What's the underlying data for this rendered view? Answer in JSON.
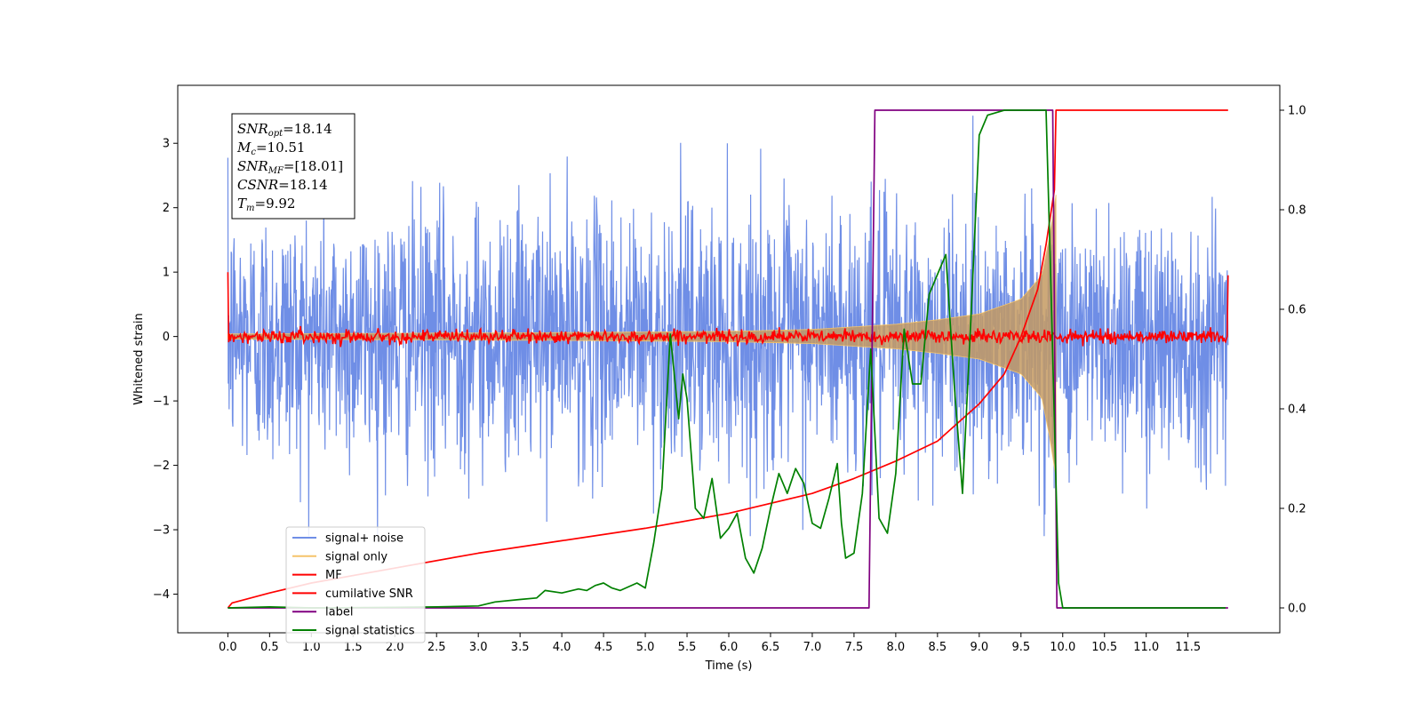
{
  "chart_data": {
    "type": "line",
    "xlabel": "Time (s)",
    "ylabel": "Whitened strain",
    "xlim": [
      -0.6,
      12.6
    ],
    "ylim": [
      -4.6,
      3.9
    ],
    "y2lim": [
      -0.05,
      1.05
    ],
    "x_ticks": [
      "0.0",
      "0.5",
      "1.0",
      "1.5",
      "2.0",
      "2.5",
      "3.0",
      "3.5",
      "4.0",
      "4.5",
      "5.0",
      "5.5",
      "6.0",
      "6.5",
      "7.0",
      "7.5",
      "8.0",
      "8.5",
      "9.0",
      "9.5",
      "10.0",
      "10.5",
      "11.0",
      "11.5"
    ],
    "y_ticks": [
      "3",
      "2",
      "1",
      "0",
      "−1",
      "−2",
      "−3",
      "−4"
    ],
    "y2_ticks": [
      "1.0",
      "0.8",
      "0.6",
      "0.4",
      "0.2",
      "0.0"
    ],
    "legend": {
      "placement": "lower-left",
      "entries": [
        "signal+ noise",
        "signal only",
        "MF",
        "cumilative SNR",
        "label",
        "signal statistics"
      ]
    },
    "annotation": {
      "lines": [
        {
          "sym": "SNR",
          "sub": "opt",
          "val": "=18.14"
        },
        {
          "sym": "M",
          "sub": "c",
          "val": "=10.51"
        },
        {
          "sym": "SNR",
          "sub": "MF",
          "val": "=[18.01]"
        },
        {
          "sym": "CSNR",
          "sub": "",
          "val": "=18.14"
        },
        {
          "sym": "T",
          "sub": "m",
          "val": "=9.92"
        }
      ]
    },
    "series": [
      {
        "name": "signal+ noise",
        "color": "#6f8ee6",
        "axis": "left",
        "kind": "noise",
        "t_start": 0.0,
        "t_end": 11.98,
        "amplitude_sd": 1.0,
        "range": [
          -3.1,
          3.5
        ]
      },
      {
        "name": "signal only",
        "color": "#f5c46a",
        "axis": "left",
        "kind": "chirp",
        "t_start": 0.0,
        "t_end": 9.92,
        "envelope": [
          [
            0.0,
            0.04
          ],
          [
            4.0,
            0.06
          ],
          [
            6.0,
            0.08
          ],
          [
            7.0,
            0.11
          ],
          [
            8.0,
            0.19
          ],
          [
            8.5,
            0.26
          ],
          [
            9.0,
            0.35
          ],
          [
            9.5,
            0.58
          ],
          [
            9.75,
            0.95
          ],
          [
            9.85,
            1.6
          ],
          [
            9.92,
            2.2
          ]
        ]
      },
      {
        "name": "MF",
        "color": "#ff0000",
        "axis": "left",
        "kind": "mf",
        "t_start": 0.0,
        "t_end": 11.98,
        "start_value": 1.0,
        "end_value": 0.95,
        "level": 0.0,
        "sd": 0.05
      },
      {
        "name": "cumilative SNR",
        "color": "#ff0000",
        "axis": "right",
        "x": [
          0.0,
          0.05,
          0.5,
          1.0,
          2.0,
          3.0,
          4.0,
          5.0,
          6.0,
          7.0,
          7.5,
          8.0,
          8.5,
          9.0,
          9.3,
          9.5,
          9.7,
          9.8,
          9.9,
          9.92,
          10.0,
          11.98
        ],
        "y": [
          0.0,
          0.01,
          0.03,
          0.05,
          0.08,
          0.11,
          0.135,
          0.16,
          0.19,
          0.23,
          0.26,
          0.295,
          0.335,
          0.41,
          0.47,
          0.545,
          0.64,
          0.73,
          0.84,
          1.0,
          1.0,
          1.0
        ]
      },
      {
        "name": "label",
        "color": "#800080",
        "axis": "right",
        "x": [
          0.0,
          7.68,
          7.75,
          9.88,
          9.93,
          11.98
        ],
        "y": [
          0.0,
          0.0,
          1.0,
          1.0,
          0.0,
          0.0
        ]
      },
      {
        "name": "signal statistics",
        "color": "#008000",
        "axis": "right",
        "x": [
          0.0,
          0.5,
          1.0,
          2.0,
          2.5,
          3.0,
          3.2,
          3.5,
          3.7,
          3.8,
          4.0,
          4.2,
          4.3,
          4.4,
          4.5,
          4.6,
          4.7,
          4.9,
          5.0,
          5.1,
          5.2,
          5.3,
          5.4,
          5.45,
          5.5,
          5.6,
          5.7,
          5.8,
          5.9,
          6.0,
          6.1,
          6.2,
          6.3,
          6.4,
          6.5,
          6.6,
          6.7,
          6.8,
          6.9,
          7.0,
          7.1,
          7.2,
          7.3,
          7.35,
          7.4,
          7.5,
          7.6,
          7.7,
          7.8,
          7.9,
          8.0,
          8.1,
          8.2,
          8.3,
          8.4,
          8.5,
          8.6,
          8.7,
          8.8,
          8.9,
          9.0,
          9.1,
          9.2,
          9.3,
          9.5,
          9.7,
          9.8,
          9.85,
          9.95,
          10.0,
          10.5,
          11.0,
          11.5,
          11.95
        ],
        "y": [
          0.0,
          0.002,
          0.0,
          0.001,
          0.002,
          0.004,
          0.012,
          0.017,
          0.02,
          0.035,
          0.03,
          0.038,
          0.035,
          0.045,
          0.05,
          0.04,
          0.035,
          0.05,
          0.04,
          0.13,
          0.24,
          0.55,
          0.38,
          0.47,
          0.42,
          0.2,
          0.18,
          0.26,
          0.14,
          0.16,
          0.19,
          0.1,
          0.07,
          0.12,
          0.2,
          0.27,
          0.23,
          0.28,
          0.25,
          0.17,
          0.16,
          0.22,
          0.29,
          0.17,
          0.1,
          0.11,
          0.23,
          0.52,
          0.18,
          0.15,
          0.27,
          0.56,
          0.45,
          0.45,
          0.63,
          0.67,
          0.71,
          0.45,
          0.23,
          0.58,
          0.95,
          0.99,
          0.995,
          1.0,
          1.0,
          1.0,
          1.0,
          0.7,
          0.05,
          0.0,
          0.0,
          0.0,
          0.0,
          0.0
        ]
      }
    ]
  }
}
